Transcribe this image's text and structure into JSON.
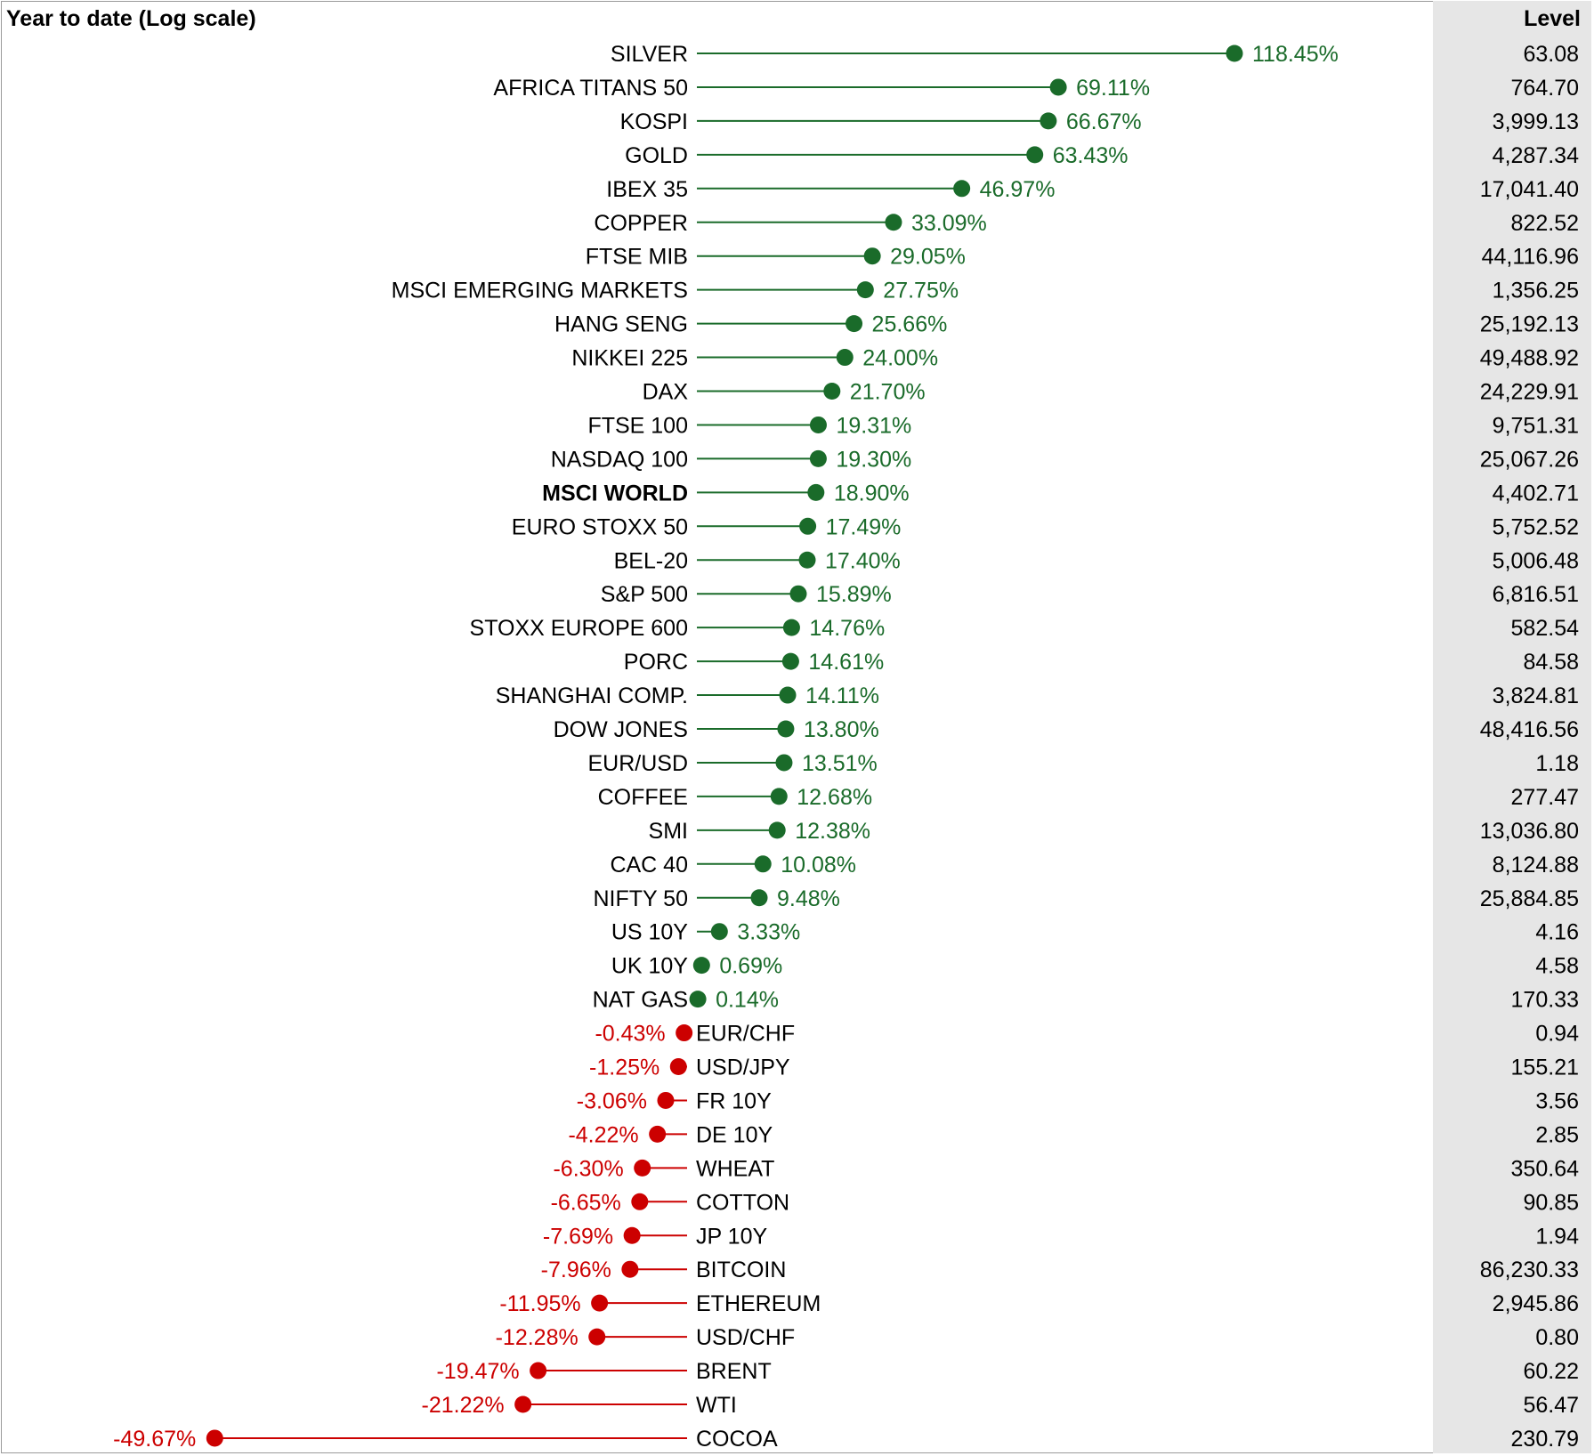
{
  "colors": {
    "positive": "#1a6b2a",
    "negative": "#cc0000",
    "text": "#000000",
    "panel": "#e6e6e6"
  },
  "chart_data": {
    "type": "lollipop",
    "title": "Year to date (Log scale)",
    "scale": "log",
    "level_header": "Level",
    "highlighted": "MSCI WORLD",
    "rows": [
      {
        "name": "SILVER",
        "change": 118.45,
        "label": "118.45%",
        "level": "63.08"
      },
      {
        "name": "AFRICA TITANS 50",
        "change": 69.11,
        "label": "69.11%",
        "level": "764.70"
      },
      {
        "name": "KOSPI",
        "change": 66.67,
        "label": "66.67%",
        "level": "3,999.13"
      },
      {
        "name": "GOLD",
        "change": 63.43,
        "label": "63.43%",
        "level": "4,287.34"
      },
      {
        "name": "IBEX 35",
        "change": 46.97,
        "label": "46.97%",
        "level": "17,041.40"
      },
      {
        "name": "COPPER",
        "change": 33.09,
        "label": "33.09%",
        "level": "822.52"
      },
      {
        "name": "FTSE MIB",
        "change": 29.05,
        "label": "29.05%",
        "level": "44,116.96"
      },
      {
        "name": "MSCI EMERGING MARKETS",
        "change": 27.75,
        "label": "27.75%",
        "level": "1,356.25"
      },
      {
        "name": "HANG SENG",
        "change": 25.66,
        "label": "25.66%",
        "level": "25,192.13"
      },
      {
        "name": "NIKKEI 225",
        "change": 24.0,
        "label": "24.00%",
        "level": "49,488.92"
      },
      {
        "name": "DAX",
        "change": 21.7,
        "label": "21.70%",
        "level": "24,229.91"
      },
      {
        "name": "FTSE 100",
        "change": 19.31,
        "label": "19.31%",
        "level": "9,751.31"
      },
      {
        "name": "NASDAQ 100",
        "change": 19.3,
        "label": "19.30%",
        "level": "25,067.26"
      },
      {
        "name": "MSCI WORLD",
        "change": 18.9,
        "label": "18.90%",
        "level": "4,402.71"
      },
      {
        "name": "EURO STOXX 50",
        "change": 17.49,
        "label": "17.49%",
        "level": "5,752.52"
      },
      {
        "name": "BEL-20",
        "change": 17.4,
        "label": "17.40%",
        "level": "5,006.48"
      },
      {
        "name": "S&P 500",
        "change": 15.89,
        "label": "15.89%",
        "level": "6,816.51"
      },
      {
        "name": "STOXX EUROPE 600",
        "change": 14.76,
        "label": "14.76%",
        "level": "582.54"
      },
      {
        "name": "PORC",
        "change": 14.61,
        "label": "14.61%",
        "level": "84.58"
      },
      {
        "name": "SHANGHAI COMP.",
        "change": 14.11,
        "label": "14.11%",
        "level": "3,824.81"
      },
      {
        "name": "DOW JONES",
        "change": 13.8,
        "label": "13.80%",
        "level": "48,416.56"
      },
      {
        "name": "EUR/USD",
        "change": 13.51,
        "label": "13.51%",
        "level": "1.18"
      },
      {
        "name": "COFFEE",
        "change": 12.68,
        "label": "12.68%",
        "level": "277.47"
      },
      {
        "name": "SMI",
        "change": 12.38,
        "label": "12.38%",
        "level": "13,036.80"
      },
      {
        "name": "CAC 40",
        "change": 10.08,
        "label": "10.08%",
        "level": "8,124.88"
      },
      {
        "name": "NIFTY 50",
        "change": 9.48,
        "label": "9.48%",
        "level": "25,884.85"
      },
      {
        "name": "US 10Y",
        "change": 3.33,
        "label": "3.33%",
        "level": "4.16"
      },
      {
        "name": "UK 10Y",
        "change": 0.69,
        "label": "0.69%",
        "level": "4.58"
      },
      {
        "name": "NAT GAS",
        "change": 0.14,
        "label": "0.14%",
        "level": "170.33"
      },
      {
        "name": "EUR/CHF",
        "change": -0.43,
        "label": "-0.43%",
        "level": "0.94"
      },
      {
        "name": "USD/JPY",
        "change": -1.25,
        "label": "-1.25%",
        "level": "155.21"
      },
      {
        "name": "FR 10Y",
        "change": -3.06,
        "label": "-3.06%",
        "level": "3.56"
      },
      {
        "name": "DE 10Y",
        "change": -4.22,
        "label": "-4.22%",
        "level": "2.85"
      },
      {
        "name": "WHEAT",
        "change": -6.3,
        "label": "-6.30%",
        "level": "350.64"
      },
      {
        "name": "COTTON",
        "change": -6.65,
        "label": "-6.65%",
        "level": "90.85"
      },
      {
        "name": "JP 10Y",
        "change": -7.69,
        "label": "-7.69%",
        "level": "1.94"
      },
      {
        "name": "BITCOIN",
        "change": -7.96,
        "label": "-7.96%",
        "level": "86,230.33"
      },
      {
        "name": "ETHEREUM",
        "change": -11.95,
        "label": "-11.95%",
        "level": "2,945.86"
      },
      {
        "name": "USD/CHF",
        "change": -12.28,
        "label": "-12.28%",
        "level": "0.80"
      },
      {
        "name": "BRENT",
        "change": -19.47,
        "label": "-19.47%",
        "level": "60.22"
      },
      {
        "name": "WTI",
        "change": -21.22,
        "label": "-21.22%",
        "level": "56.47"
      },
      {
        "name": "COCOA",
        "change": -49.67,
        "label": "-49.67%",
        "level": "230.79"
      }
    ]
  }
}
